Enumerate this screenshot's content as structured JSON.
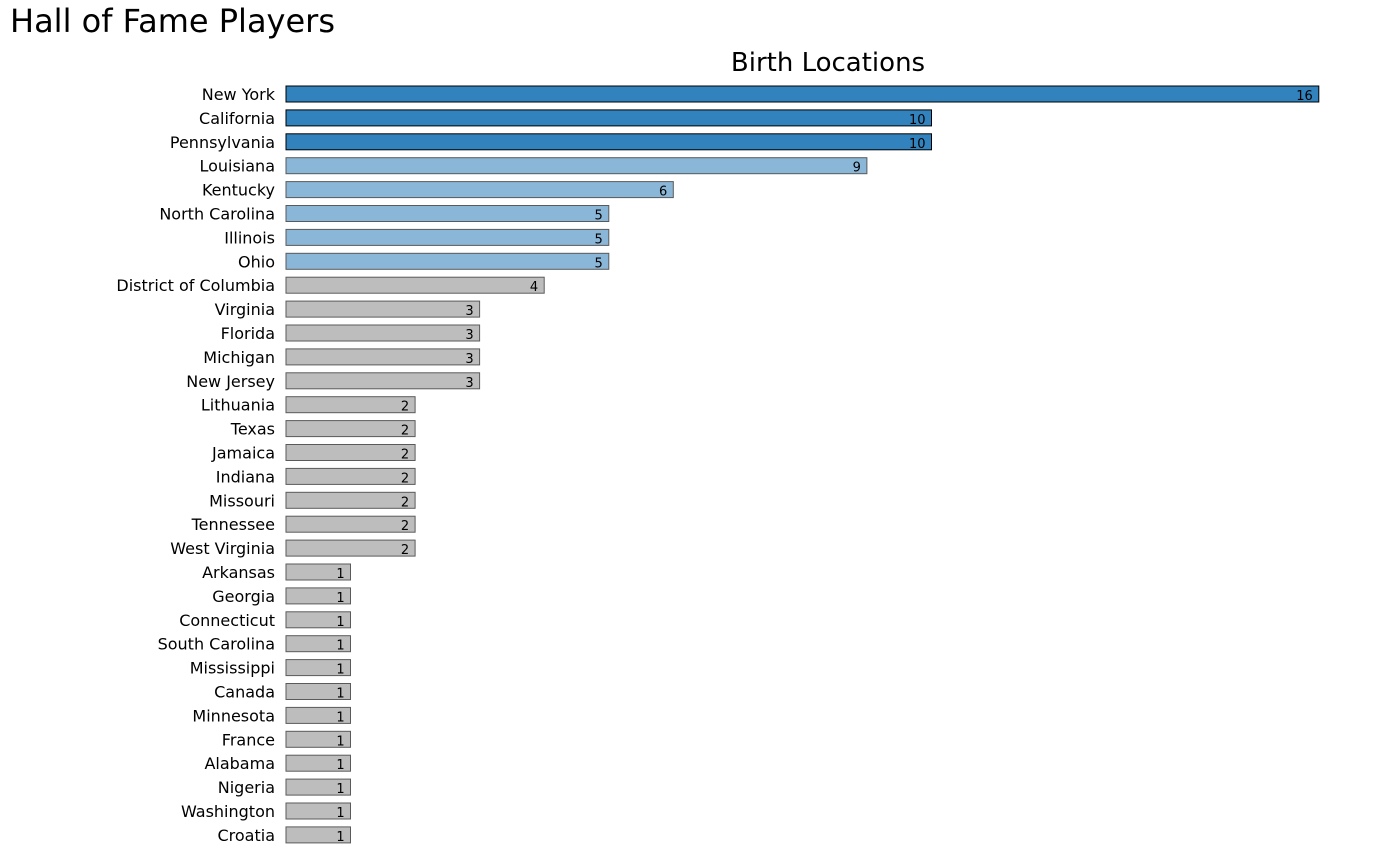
{
  "page_title": "Hall of Fame Players",
  "chart_data": {
    "type": "bar",
    "orientation": "horizontal",
    "title": "Birth Locations",
    "xlabel": "",
    "ylabel": "",
    "xlim": [
      0,
      16
    ],
    "grid": false,
    "legend": "none",
    "categories": [
      "New York",
      "California",
      "Pennsylvania",
      "Louisiana",
      "Kentucky",
      "North Carolina",
      "Illinois",
      "Ohio",
      "District of Columbia",
      "Virginia",
      "Florida",
      "Michigan",
      "New Jersey",
      "Lithuania",
      "Texas",
      "Jamaica",
      "Indiana",
      "Missouri",
      "Tennessee",
      "West Virginia",
      "Arkansas",
      "Georgia",
      "Connecticut",
      "South Carolina",
      "Mississippi",
      "Canada",
      "Minnesota",
      "France",
      "Alabama",
      "Nigeria",
      "Washington",
      "Croatia"
    ],
    "values": [
      16,
      10,
      10,
      9,
      6,
      5,
      5,
      5,
      4,
      3,
      3,
      3,
      3,
      2,
      2,
      2,
      2,
      2,
      2,
      2,
      1,
      1,
      1,
      1,
      1,
      1,
      1,
      1,
      1,
      1,
      1,
      1
    ],
    "colors": {
      "tier_top": "#3182bd",
      "tier_mid": "#8ab6d7",
      "tier_low": "#bdbdbd",
      "edge_top": "#000000",
      "edge_other": "#5a5a5a"
    },
    "color_tiers": [
      "top",
      "top",
      "top",
      "mid",
      "mid",
      "mid",
      "mid",
      "mid",
      "low",
      "low",
      "low",
      "low",
      "low",
      "low",
      "low",
      "low",
      "low",
      "low",
      "low",
      "low",
      "low",
      "low",
      "low",
      "low",
      "low",
      "low",
      "low",
      "low",
      "low",
      "low",
      "low",
      "low"
    ]
  }
}
